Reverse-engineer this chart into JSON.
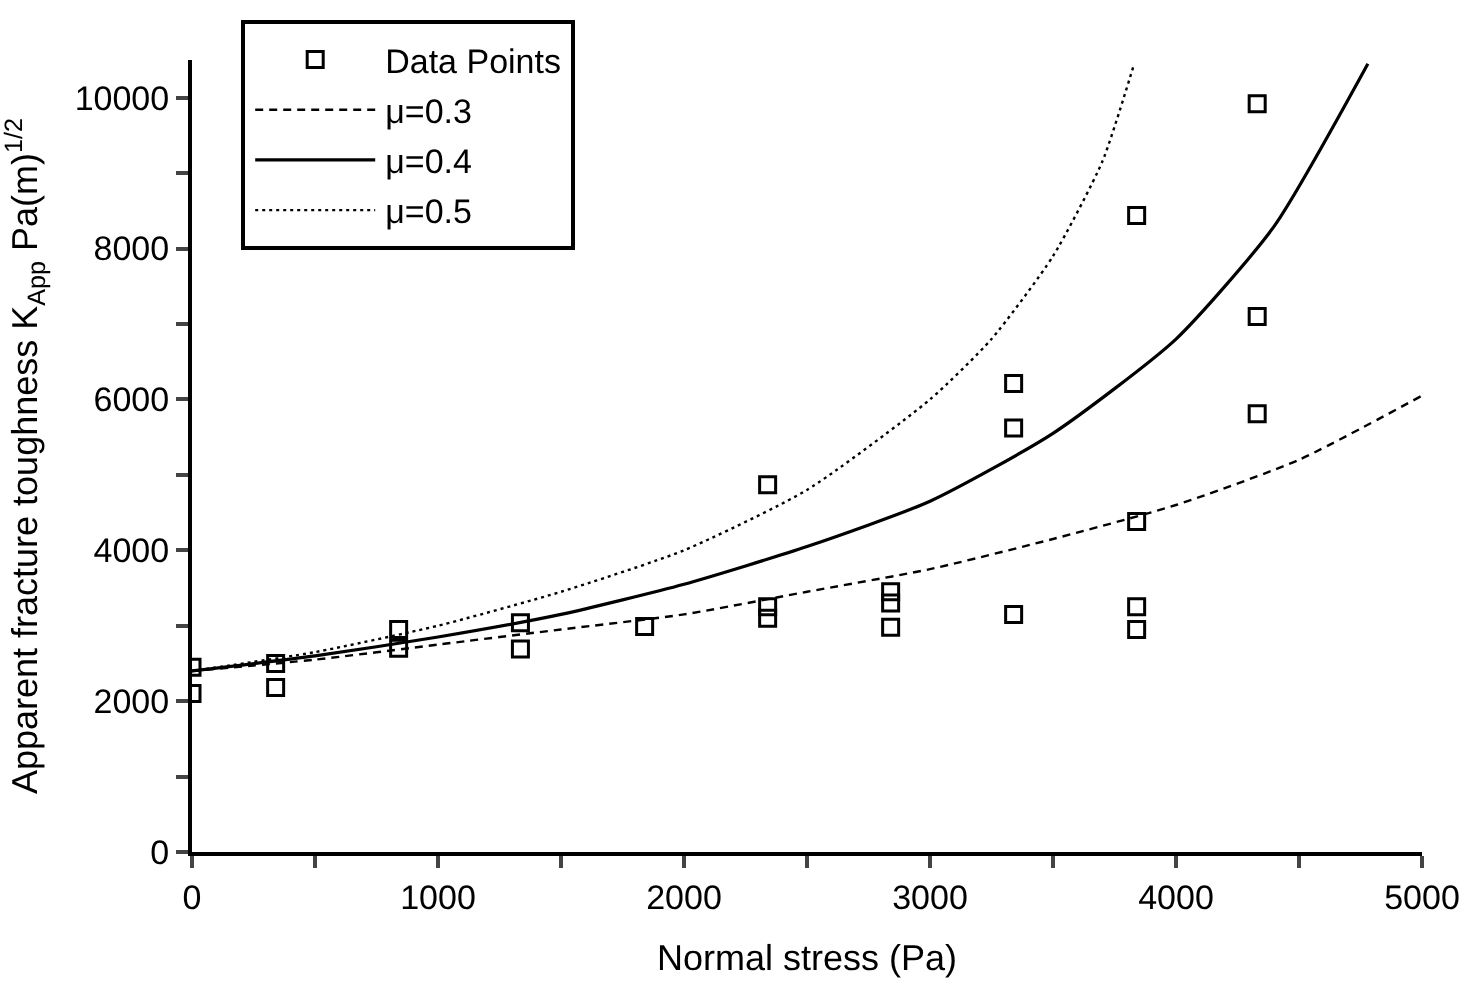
{
  "chart_data": {
    "type": "scatter",
    "xlabel": "Normal stress (Pa)",
    "ylabel": "Apparent fracture toughness K$_{App}$ Pa(m)$^{1/2}$",
    "xlim": [
      0,
      5000
    ],
    "ylim": [
      0,
      10500
    ],
    "xticks": [
      0,
      {
        "value": 500,
        "label": null
      },
      1000,
      {
        "value": 1500,
        "label": null
      },
      2000,
      {
        "value": 2500,
        "label": null
      },
      3000,
      {
        "value": 3500,
        "label": null
      },
      4000,
      {
        "value": 4500,
        "label": null
      },
      5000
    ],
    "yticks": [
      0,
      {
        "value": 1000,
        "label": null
      },
      2000,
      {
        "value": 3000,
        "label": null
      },
      4000,
      {
        "value": 5000,
        "label": null
      },
      6000,
      {
        "value": 7000,
        "label": null
      },
      8000,
      {
        "value": 9000,
        "label": null
      },
      10000
    ],
    "legend": "top left",
    "series": [
      {
        "name": "Data Points",
        "marker": "square",
        "color": "#000000",
        "x": [
          0,
          0,
          340,
          340,
          840,
          840,
          1335,
          1335,
          1840,
          2340,
          2340,
          2340,
          2840,
          2840,
          2840,
          3340,
          3340,
          3340,
          3840,
          3840,
          3840,
          3840,
          4330,
          4330,
          4330
        ],
        "values": [
          2450,
          2100,
          2500,
          2180,
          2700,
          2950,
          3040,
          2690,
          2990,
          4870,
          3100,
          3250,
          3450,
          3300,
          2980,
          6210,
          5620,
          3150,
          8440,
          4380,
          3250,
          2950,
          9920,
          7100,
          5810
        ]
      },
      {
        "name": "μ=0.3",
        "type": "line",
        "line_style": "dashed",
        "color": "#000000",
        "x": [
          0,
          500,
          1000,
          1500,
          2000,
          2500,
          3000,
          3500,
          4000,
          4500,
          5000
        ],
        "values": [
          2400,
          2550,
          2750,
          2950,
          3150,
          3450,
          3750,
          4150,
          4600,
          5200,
          6050
        ]
      },
      {
        "name": "μ=0.4",
        "type": "line",
        "line_style": "solid",
        "color": "#000000",
        "x": [
          0,
          500,
          1000,
          1500,
          2000,
          2500,
          3000,
          3500,
          4000,
          4400,
          4780
        ],
        "values": [
          2400,
          2600,
          2850,
          3150,
          3550,
          4050,
          4650,
          5550,
          6800,
          8300,
          10450
        ]
      },
      {
        "name": "μ=0.5",
        "type": "line",
        "line_style": "dotted",
        "color": "#000000",
        "x": [
          0,
          500,
          1000,
          1500,
          2000,
          2500,
          3000,
          3250,
          3500,
          3700,
          3830
        ],
        "values": [
          2400,
          2650,
          3000,
          3450,
          4000,
          4800,
          6000,
          6800,
          7900,
          9150,
          10450
        ]
      }
    ]
  }
}
